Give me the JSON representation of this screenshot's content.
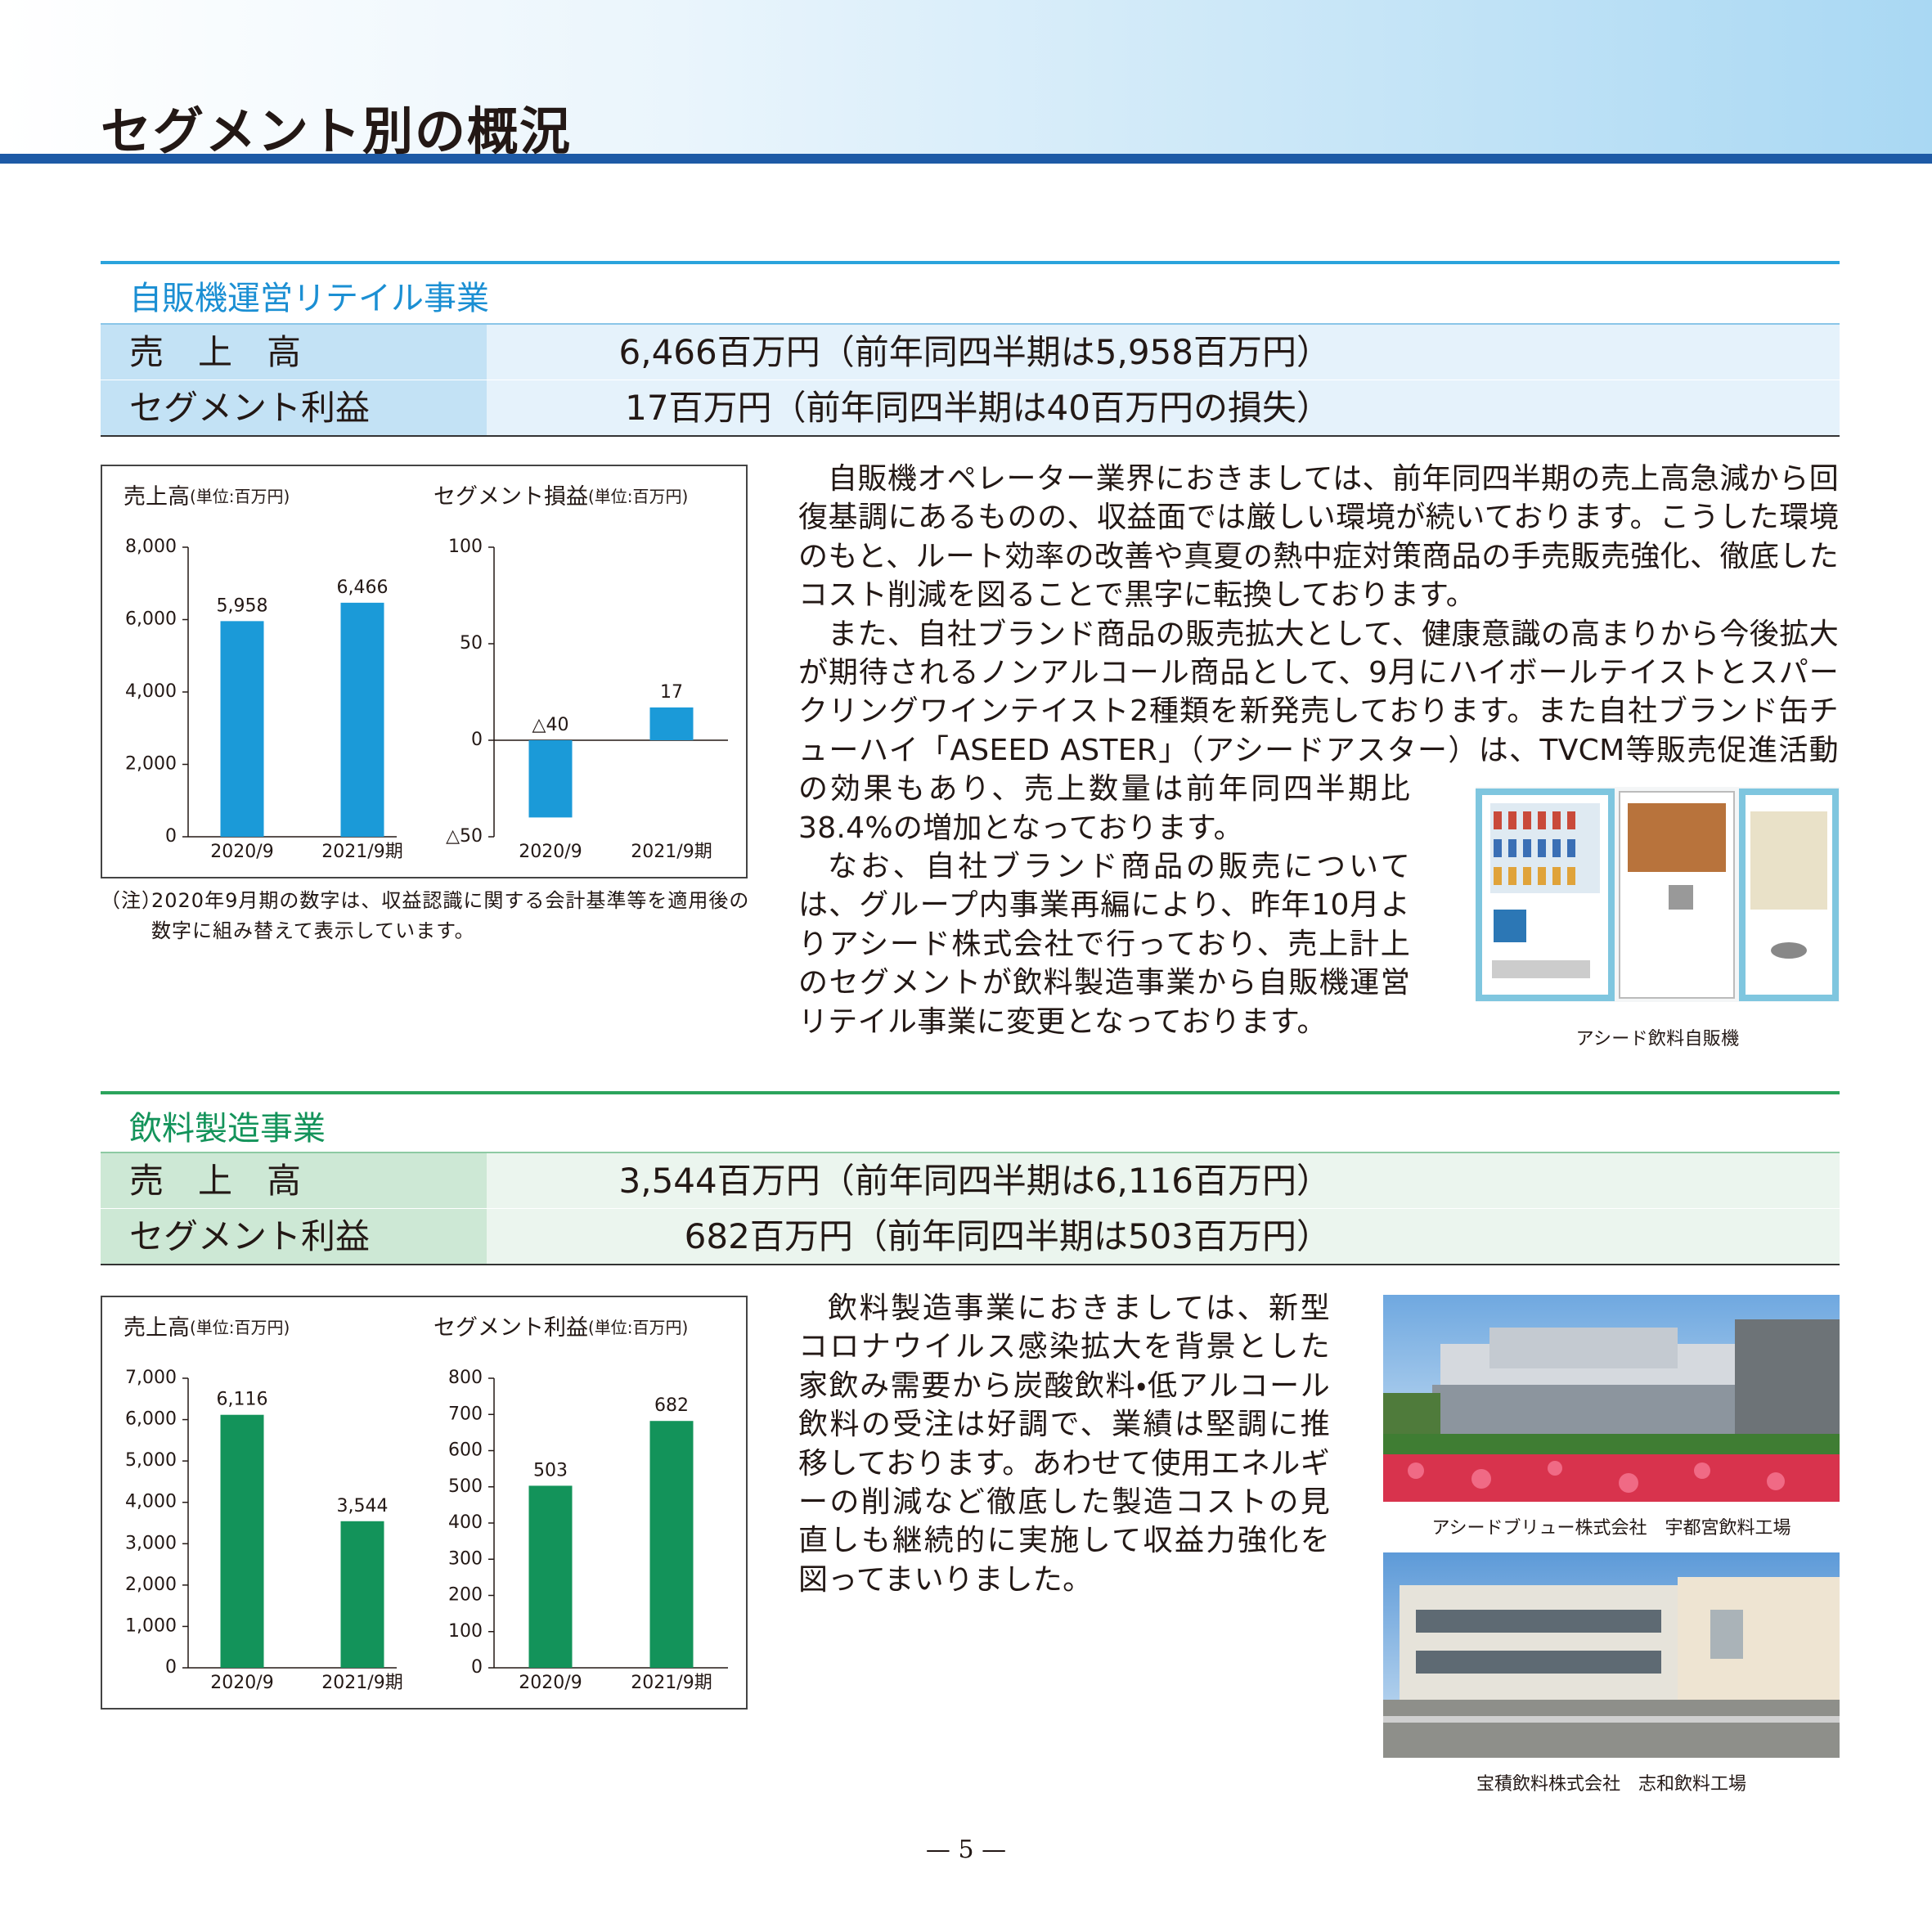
{
  "header": {
    "title": "セグメント別の概況"
  },
  "sections": [
    {
      "title": "自販機運営リテイル事業",
      "rows": [
        {
          "label": "売　上　高",
          "value": "6,466百万円（前年同四半期は5,958百万円）"
        },
        {
          "label": "セグメント利益",
          "value": "17百万円（前年同四半期は40百万円の損失）"
        }
      ],
      "charts": [
        {
          "type": "bar",
          "title": "売上高",
          "unit": "(単位:百万円)",
          "categories": [
            "2020/9",
            "2021/9期"
          ],
          "values": [
            5958,
            6466
          ],
          "value_labels": [
            "5,958",
            "6,466"
          ],
          "color": "#1b9ad8",
          "ylim": [
            0,
            8000
          ],
          "yticks": [
            0,
            {
              "value": 2000,
              "label": "2,000"
            },
            {
              "value": 4000,
              "label": "4,000"
            },
            {
              "value": 6000,
              "label": "6,000"
            },
            {
              "value": 8000,
              "label": "8,000"
            }
          ]
        },
        {
          "type": "bar",
          "title": "セグメント損益",
          "unit": "(単位:百万円)",
          "categories": [
            "2020/9",
            "2021/9期"
          ],
          "values": [
            -40,
            17
          ],
          "value_labels": [
            "△40",
            "17"
          ],
          "color": "#1b9ad8",
          "ylim": [
            -50,
            100
          ],
          "yticks": [
            {
              "value": -50,
              "label": "△50"
            },
            0,
            50,
            100
          ]
        }
      ],
      "note": {
        "label": "（注）",
        "text": "2020年9月期の数字は、収益認識に関する会計基準等を適用後の数字に組み替えて表示しています。"
      },
      "paragraphs": [
        "自販機オペレーター業界におきましては、前年同四半期の売上高急減から回復基調にあるものの、収益面では厳しい環境が続いております。こうした環境のもと、ルート効率の改善や真夏の熱中症対策商品の手売販売強化、徹底したコスト削減を図ることで黒字に転換しております。",
        "また、自社ブランド商品の販売拡大として、健康意識の高まりから今後拡大が期待されるノンアルコール商品として、9月にハイボールテイストとスパークリングワインテイスト2種類を新発売しております。また自社ブランド缶チューハイ「ASEED ASTER」（アシードアスター）は、TVCM等販売促進活動の効果もあり、売上数量は前年同四半期比38.4%の増加となっております。",
        "なお、自社ブランド商品の販売については、グループ内事業再編により、昨年10月よりアシード株式会社で行っており、売上計上のセグメントが飲料製造事業から自販機運営リテイル事業に変更となっております。"
      ],
      "photos": [
        {
          "caption": "アシード飲料自販機"
        }
      ]
    },
    {
      "title": "飲料製造事業",
      "rows": [
        {
          "label": "売　上　高",
          "value": "3,544百万円（前年同四半期は6,116百万円）"
        },
        {
          "label": "セグメント利益",
          "value": "682百万円（前年同四半期は503百万円）"
        }
      ],
      "charts": [
        {
          "type": "bar",
          "title": "売上高",
          "unit": "(単位:百万円)",
          "categories": [
            "2020/9",
            "2021/9期"
          ],
          "values": [
            6116,
            3544
          ],
          "value_labels": [
            "6,116",
            "3,544"
          ],
          "color": "#13935a",
          "ylim": [
            0,
            7000
          ],
          "yticks": [
            0,
            {
              "value": 1000,
              "label": "1,000"
            },
            {
              "value": 2000,
              "label": "2,000"
            },
            {
              "value": 3000,
              "label": "3,000"
            },
            {
              "value": 4000,
              "label": "4,000"
            },
            {
              "value": 5000,
              "label": "5,000"
            },
            {
              "value": 6000,
              "label": "6,000"
            },
            {
              "value": 7000,
              "label": "7,000"
            }
          ]
        },
        {
          "type": "bar",
          "title": "セグメント利益",
          "unit": "(単位:百万円)",
          "categories": [
            "2020/9",
            "2021/9期"
          ],
          "values": [
            503,
            682
          ],
          "color": "#13935a",
          "ylim": [
            0,
            800
          ],
          "yticks": [
            0,
            100,
            200,
            300,
            400,
            500,
            600,
            700,
            800
          ]
        }
      ],
      "paragraphs": [
        "飲料製造事業におきましては、新型コロナウイルス感染拡大を背景とした家飲み需要から炭酸飲料・低アルコール飲料の受注は好調で、業績は堅調に推移しております。あわせて使用エネルギーの削減など徹底した製造コストの見直しも継続的に実施して収益力強化を図ってまいりました。"
      ],
      "photos": [
        {
          "caption": "アシードブリュー株式会社　宇都宮飲料工場"
        },
        {
          "caption": "宝積飲料株式会社　志和飲料工場"
        }
      ]
    }
  ],
  "footer": {
    "page": "— 5 —"
  }
}
